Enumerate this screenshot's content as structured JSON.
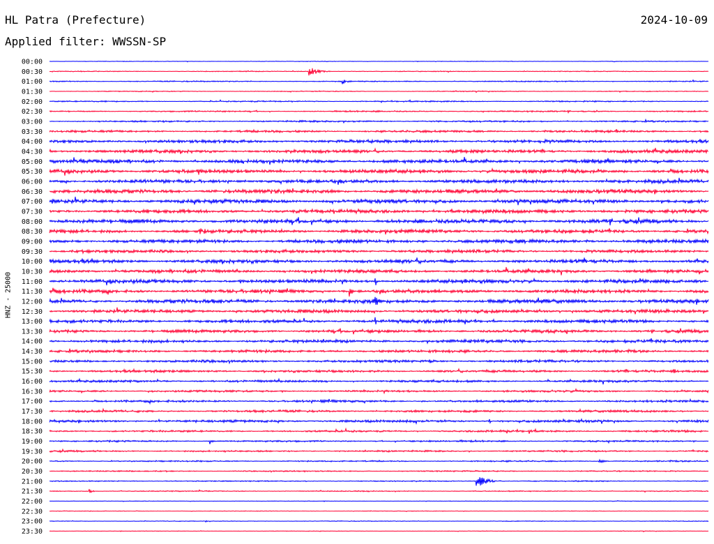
{
  "header": {
    "station": "HL Patra (Prefecture)",
    "date": "2024-10-09",
    "filter": "Applied filter: WWSSN-SP"
  },
  "colors": {
    "even_hour": "#0000ff",
    "odd_half": "#ff0033"
  },
  "chart_data": {
    "type": "line",
    "title": "HL Patra (Prefecture)",
    "ylabel": "HNZ - 25000",
    "xlabel": "",
    "grid": false,
    "time_labels": [
      "00:00",
      "00:30",
      "01:00",
      "01:30",
      "02:00",
      "02:30",
      "03:00",
      "03:30",
      "04:00",
      "04:30",
      "05:00",
      "05:30",
      "06:00",
      "06:30",
      "07:00",
      "07:30",
      "08:00",
      "08:30",
      "09:00",
      "09:30",
      "10:00",
      "10:30",
      "11:00",
      "11:30",
      "12:00",
      "12:30",
      "13:00",
      "13:30",
      "14:00",
      "14:30",
      "15:00",
      "15:30",
      "16:00",
      "16:30",
      "17:00",
      "17:30",
      "18:00",
      "18:30",
      "19:00",
      "19:30",
      "20:00",
      "20:30",
      "21:00",
      "21:30",
      "22:00",
      "22:30",
      "23:00",
      "23:30"
    ],
    "trace_noise_level": [
      0.4,
      0.6,
      0.8,
      0.6,
      0.9,
      1.0,
      1.2,
      1.6,
      2.2,
      2.4,
      2.6,
      2.6,
      2.6,
      2.8,
      2.8,
      2.6,
      2.8,
      2.6,
      2.6,
      2.2,
      2.6,
      2.4,
      2.6,
      2.6,
      2.8,
      2.4,
      2.4,
      2.2,
      2.2,
      2.0,
      1.8,
      1.8,
      1.6,
      1.4,
      1.6,
      1.6,
      1.8,
      1.4,
      1.2,
      1.2,
      1.0,
      0.9,
      0.8,
      0.7,
      0.4,
      0.4,
      0.5,
      0.4
    ],
    "events": [
      {
        "trace": "00:30",
        "minute": 11.8,
        "amplitude": 9,
        "duration": 1.0
      },
      {
        "trace": "01:00",
        "minute": 13.3,
        "amplitude": 5,
        "duration": 0.6
      },
      {
        "trace": "08:30",
        "minute": 6.8,
        "amplitude": 8,
        "duration": 0.5
      },
      {
        "trace": "08:00",
        "minute": 8.8,
        "amplitude": 6,
        "duration": 0.4
      },
      {
        "trace": "08:30",
        "minute": 24.6,
        "amplitude": 7,
        "duration": 0.3
      },
      {
        "trace": "11:30",
        "minute": 13.6,
        "amplitude": 12,
        "duration": 0.4
      },
      {
        "trace": "11:00",
        "minute": 14.8,
        "amplitude": 14,
        "duration": 0.3
      },
      {
        "trace": "12:00",
        "minute": 14.8,
        "amplitude": 10,
        "duration": 0.6
      },
      {
        "trace": "13:00",
        "minute": 14.8,
        "amplitude": 10,
        "duration": 0.3
      },
      {
        "trace": "08:30",
        "minute": 7.0,
        "amplitude": 6,
        "duration": 0.4
      },
      {
        "trace": "21:00",
        "minute": 19.4,
        "amplitude": 11,
        "duration": 1.2
      },
      {
        "trace": "21:30",
        "minute": 1.8,
        "amplitude": 4,
        "duration": 0.4
      },
      {
        "trace": "03:30",
        "minute": 25.8,
        "amplitude": 4,
        "duration": 0.4
      },
      {
        "trace": "15:30",
        "minute": 28.4,
        "amplitude": 5,
        "duration": 0.4
      },
      {
        "trace": "16:30",
        "minute": 6.8,
        "amplitude": 4,
        "duration": 0.3
      },
      {
        "trace": "18:30",
        "minute": 21.8,
        "amplitude": 5,
        "duration": 0.4
      },
      {
        "trace": "18:00",
        "minute": 20.0,
        "amplitude": 5,
        "duration": 0.4
      },
      {
        "trace": "19:00",
        "minute": 7.3,
        "amplitude": 5,
        "duration": 0.3
      },
      {
        "trace": "23:00",
        "minute": 7.1,
        "amplitude": 3,
        "duration": 0.5
      },
      {
        "trace": "15:00",
        "minute": 17.3,
        "amplitude": 5,
        "duration": 0.5
      },
      {
        "trace": "20:00",
        "minute": 25.0,
        "amplitude": 4,
        "duration": 0.6
      }
    ]
  }
}
